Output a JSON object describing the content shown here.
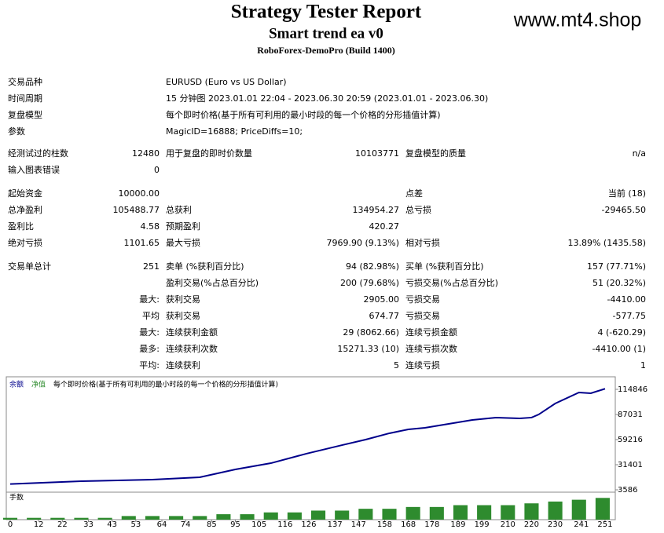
{
  "header": {
    "title": "Strategy Tester Report",
    "subtitle": "Smart trend ea v0",
    "server": "RoboForex-DemoPro (Build 1400)",
    "watermark": "www.mt4.shop"
  },
  "info": [
    [
      "交易品种",
      "EURUSD (Euro vs US Dollar)"
    ],
    [
      "时间周期",
      "15 分钟图 2023.01.01 22:04 - 2023.06.30 20:59 (2023.01.01 - 2023.06.30)"
    ],
    [
      "复盘模型",
      "每个即时价格(基于所有可利用的最小时段的每一个价格的分形插值计算)"
    ],
    [
      "参数",
      "MagicID=16888; PriceDiffs=10;"
    ]
  ],
  "table": {
    "rows": [
      [
        "经测试过的柱数",
        "12480",
        "用于复盘的即时价数量",
        "10103771",
        "复盘模型的质量",
        "n/a"
      ],
      [
        "输入图表错误",
        "0",
        null,
        null,
        null,
        null
      ],
      [
        "起始资金",
        "10000.00",
        null,
        null,
        "点差",
        "当前 (18)"
      ],
      [
        "总净盈利",
        "105488.77",
        "总获利",
        "134954.27",
        "总亏损",
        "-29465.50"
      ],
      [
        "盈利比",
        "4.58",
        "预期盈利",
        "420.27",
        null,
        null
      ],
      [
        "绝对亏损",
        "1101.65",
        "最大亏损",
        "7969.90 (9.13%)",
        "相对亏损",
        "13.89% (1435.58)"
      ],
      [
        "交易单总计",
        "251",
        "卖单 (%获利百分比)",
        "94 (82.98%)",
        "买单 (%获利百分比)",
        "157 (77.71%)"
      ],
      [
        null,
        null,
        "盈利交易(%占总百分比)",
        "200 (79.68%)",
        "亏损交易(%占总百分比)",
        "51 (20.32%)"
      ],
      [
        null,
        "最大:",
        "获利交易",
        "2905.00",
        "亏损交易",
        "-4410.00"
      ],
      [
        null,
        "平均",
        "获利交易",
        "674.77",
        "亏损交易",
        "-577.75"
      ],
      [
        null,
        "最大:",
        "连续获利金额",
        "29 (8062.66)",
        "连续亏损金额",
        "4 (-620.29)"
      ],
      [
        null,
        "最多:",
        "连续获利次数",
        "15271.33 (10)",
        "连续亏损次数",
        "-4410.00 (1)"
      ],
      [
        null,
        "平均:",
        "连续获利",
        "5",
        "连续亏损",
        "1"
      ]
    ]
  },
  "chart_data": [
    {
      "type": "line",
      "legend": [
        "余额",
        "净值"
      ],
      "subtitle": "每个即时价格(基于所有可利用的最小时段的每一个价格的分形插值计算)",
      "x": [
        0,
        30,
        60,
        80,
        95,
        110,
        125,
        140,
        150,
        160,
        168,
        175,
        185,
        195,
        205,
        215,
        220,
        223,
        230,
        240,
        245,
        251
      ],
      "series": [
        {
          "name": "余额",
          "color": "#00008b",
          "values": [
            10000,
            13100,
            14900,
            17500,
            26200,
            33100,
            43600,
            53100,
            59200,
            66200,
            70500,
            72300,
            76600,
            80900,
            83600,
            82700,
            83600,
            87000,
            99200,
            111400,
            110500,
            115489
          ]
        }
      ],
      "xlim": [
        0,
        255
      ],
      "ylim": [
        978,
        127882
      ],
      "yticks": [
        114846,
        87031,
        59216,
        31401,
        3586
      ],
      "xticks": [
        0,
        12,
        22,
        33,
        43,
        53,
        64,
        74,
        85,
        95,
        105,
        116,
        126,
        137,
        147,
        158,
        168,
        178,
        189,
        199,
        210,
        220,
        230,
        241,
        251
      ]
    },
    {
      "type": "bar",
      "title": "手数",
      "color": "#2e8b2e",
      "x": [
        0,
        10,
        20,
        30,
        40,
        50,
        60,
        70,
        80,
        90,
        100,
        110,
        120,
        130,
        140,
        150,
        160,
        170,
        180,
        190,
        200,
        210,
        220,
        230,
        240,
        250
      ],
      "values": [
        0.01,
        0.01,
        0.01,
        0.01,
        0.01,
        0.02,
        0.02,
        0.02,
        0.02,
        0.03,
        0.03,
        0.04,
        0.04,
        0.05,
        0.05,
        0.06,
        0.06,
        0.07,
        0.07,
        0.08,
        0.08,
        0.08,
        0.09,
        0.1,
        0.11,
        0.12
      ],
      "xlim": [
        0,
        255
      ],
      "ylim": [
        0,
        0.13
      ]
    }
  ]
}
